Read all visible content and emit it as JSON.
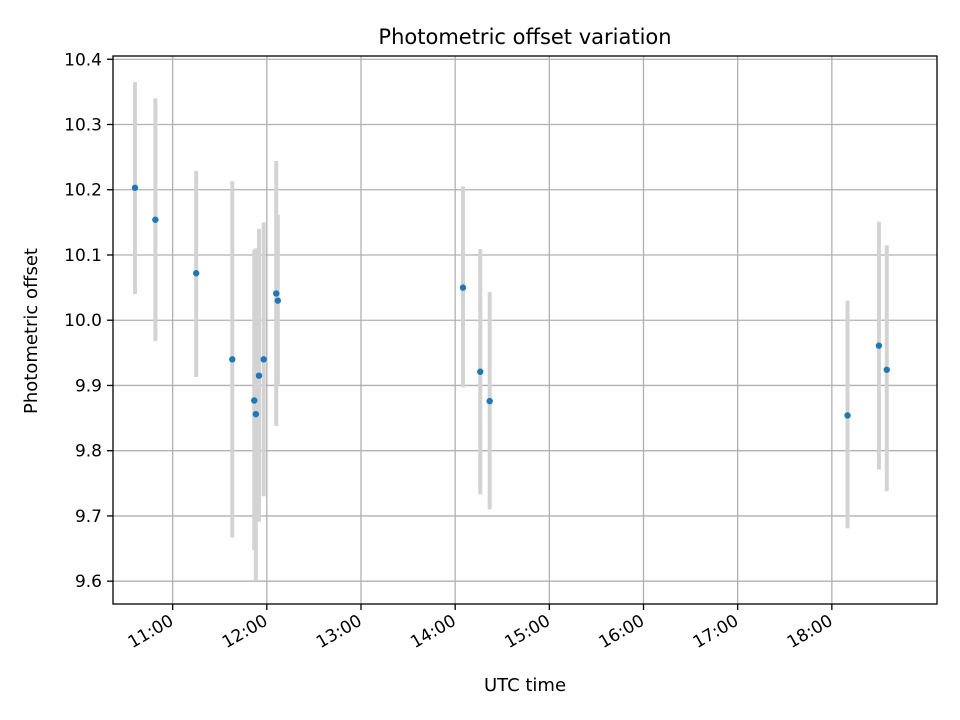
{
  "chart_data": {
    "type": "scatter",
    "title": "Photometric offset variation",
    "xlabel": "UTC time",
    "ylabel": "Photometric offset",
    "x_tick_labels": [
      "11:00",
      "12:00",
      "13:00",
      "14:00",
      "15:00",
      "16:00",
      "17:00",
      "18:00"
    ],
    "x_tick_times": [
      "11:00",
      "12:00",
      "13:00",
      "14:00",
      "15:00",
      "16:00",
      "17:00",
      "18:00"
    ],
    "xlim": [
      "10:22",
      "19:07"
    ],
    "y_tick_labels": [
      "9.6",
      "9.7",
      "9.8",
      "9.9",
      "10.0",
      "10.1",
      "10.2",
      "10.3",
      "10.4"
    ],
    "y_ticks": [
      9.6,
      9.7,
      9.8,
      9.9,
      10.0,
      10.1,
      10.2,
      10.3,
      10.4
    ],
    "ylim": [
      9.565,
      10.405
    ],
    "grid": true,
    "marker_color": "#1f77b4",
    "errorbar_color": "#d3d3d3",
    "points": [
      {
        "time": "10:36",
        "y": 10.203,
        "yerr_low": 10.04,
        "yerr_high": 10.365
      },
      {
        "time": "10:49",
        "y": 10.154,
        "yerr_low": 9.968,
        "yerr_high": 10.34
      },
      {
        "time": "11:15",
        "y": 10.072,
        "yerr_low": 9.913,
        "yerr_high": 10.229
      },
      {
        "time": "11:38",
        "y": 9.94,
        "yerr_low": 9.667,
        "yerr_high": 10.213
      },
      {
        "time": "11:52",
        "y": 9.877,
        "yerr_low": 9.648,
        "yerr_high": 10.108
      },
      {
        "time": "11:53",
        "y": 9.856,
        "yerr_low": 9.6,
        "yerr_high": 10.11
      },
      {
        "time": "11:55",
        "y": 9.915,
        "yerr_low": 9.691,
        "yerr_high": 10.14
      },
      {
        "time": "11:58",
        "y": 9.94,
        "yerr_low": 9.73,
        "yerr_high": 10.15
      },
      {
        "time": "12:06",
        "y": 10.041,
        "yerr_low": 9.838,
        "yerr_high": 10.244
      },
      {
        "time": "12:07",
        "y": 10.03,
        "yerr_low": 9.9,
        "yerr_high": 10.162
      },
      {
        "time": "14:05",
        "y": 10.05,
        "yerr_low": 9.897,
        "yerr_high": 10.205
      },
      {
        "time": "14:16",
        "y": 9.921,
        "yerr_low": 9.733,
        "yerr_high": 10.109
      },
      {
        "time": "14:22",
        "y": 9.876,
        "yerr_low": 9.71,
        "yerr_high": 10.043
      },
      {
        "time": "18:10",
        "y": 9.854,
        "yerr_low": 9.681,
        "yerr_high": 10.03
      },
      {
        "time": "18:30",
        "y": 9.961,
        "yerr_low": 9.771,
        "yerr_high": 10.151
      },
      {
        "time": "18:35",
        "y": 9.924,
        "yerr_low": 9.738,
        "yerr_high": 10.115
      }
    ]
  }
}
